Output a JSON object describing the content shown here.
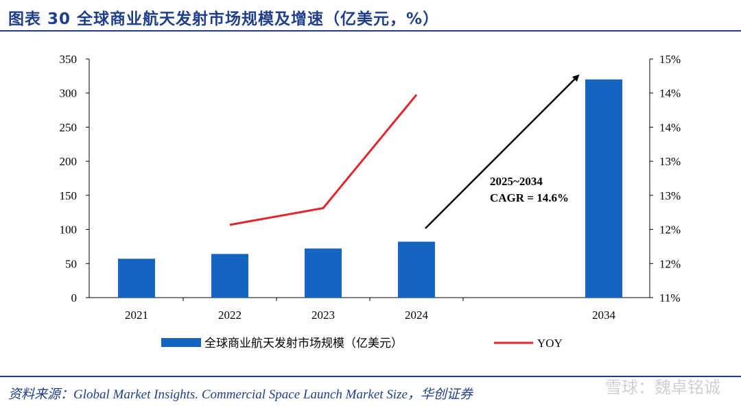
{
  "header": {
    "title": "图表 30   全球商业航天发射市场规模及增速（亿美元，%）"
  },
  "footer": {
    "source": "资料来源：Global Market Insights. Commercial Space Launch Market Size，华创证券",
    "watermark": "雪球：魏卓铭诚"
  },
  "chart_data": {
    "type": "bar",
    "categories": [
      "2021",
      "2022",
      "2023",
      "2024",
      "2034"
    ],
    "series": [
      {
        "name": "全球商业航天发射市场规模（亿美元）",
        "type": "bar",
        "axis": "left",
        "color": "#1565c0",
        "values": [
          57,
          64,
          72,
          82,
          320
        ]
      },
      {
        "name": "YOY",
        "type": "line",
        "axis": "right",
        "color": "#e0252b",
        "values": [
          null,
          12.22,
          12.5,
          14.4,
          null
        ]
      }
    ],
    "left_axis": {
      "min": 0,
      "max": 350,
      "ticks": [
        "0",
        "50",
        "100",
        "150",
        "200",
        "250",
        "300",
        "350"
      ]
    },
    "right_axis": {
      "min": 11,
      "max": 15,
      "ticks": [
        "11%",
        "12%",
        "12%",
        "13%",
        "13%",
        "14%",
        "14%",
        "15%"
      ]
    },
    "annotation": {
      "lines": [
        "2025~2034",
        "CAGR = 14.6%"
      ]
    },
    "legend": {
      "position": "bottom"
    },
    "grid": false
  }
}
